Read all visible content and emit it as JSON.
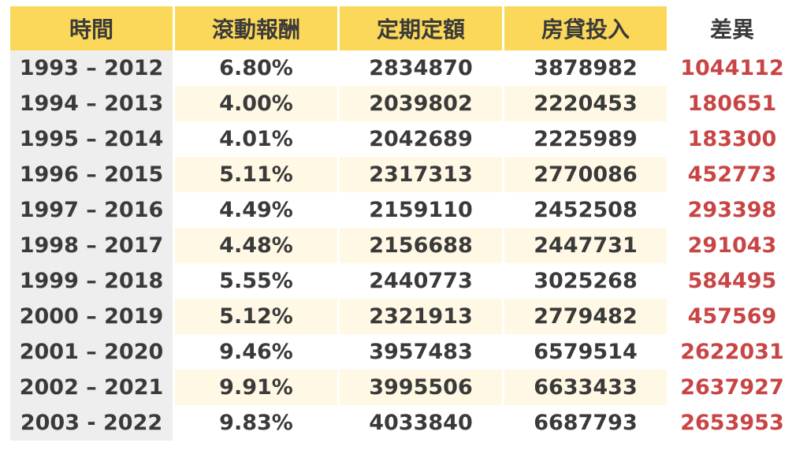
{
  "headers": {
    "period": "時間",
    "rolling_return": "滾動報酬",
    "fixed_amount": "定期定額",
    "mortgage": "房貸投入",
    "difference": "差異"
  },
  "rows": [
    {
      "period": "1993 – 2012",
      "rate": "6.80%",
      "fixed": "2834870",
      "mortgage": "3878982",
      "diff": "1044112"
    },
    {
      "period": "1994 – 2013",
      "rate": "4.00%",
      "fixed": "2039802",
      "mortgage": "2220453",
      "diff": "180651"
    },
    {
      "period": "1995 – 2014",
      "rate": "4.01%",
      "fixed": "2042689",
      "mortgage": "2225989",
      "diff": "183300"
    },
    {
      "period": "1996 – 2015",
      "rate": "5.11%",
      "fixed": "2317313",
      "mortgage": "2770086",
      "diff": "452773"
    },
    {
      "period": "1997 – 2016",
      "rate": "4.49%",
      "fixed": "2159110",
      "mortgage": "2452508",
      "diff": "293398"
    },
    {
      "period": "1998 – 2017",
      "rate": "4.48%",
      "fixed": "2156688",
      "mortgage": "2447731",
      "diff": "291043"
    },
    {
      "period": "1999 – 2018",
      "rate": "5.55%",
      "fixed": "2440773",
      "mortgage": "3025268",
      "diff": "584495"
    },
    {
      "period": "2000 – 2019",
      "rate": "5.12%",
      "fixed": "2321913",
      "mortgage": "2779482",
      "diff": "457569"
    },
    {
      "period": "2001 – 2020",
      "rate": "9.46%",
      "fixed": "3957483",
      "mortgage": "6579514",
      "diff": "2622031"
    },
    {
      "period": "2002 – 2021",
      "rate": "9.91%",
      "fixed": "3995506",
      "mortgage": "6633433",
      "diff": "2637927"
    },
    {
      "period": "2003 - 2022",
      "rate": "9.83%",
      "fixed": "4033840",
      "mortgage": "6687793",
      "diff": "2653953"
    }
  ],
  "colors": {
    "header_bg": "#fbd85a",
    "period_bg": "#eeeeee",
    "alt_row_bg": "#fff8e4",
    "diff_text": "#c94545",
    "body_text": "#3a3a3a"
  }
}
